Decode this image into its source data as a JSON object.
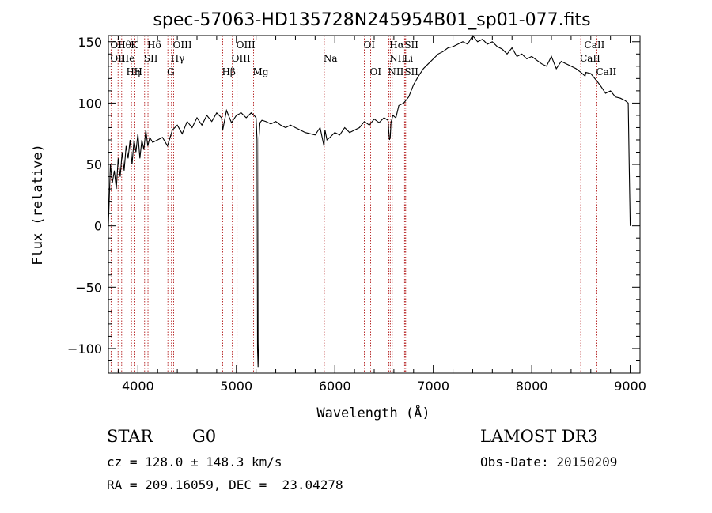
{
  "chart_data": {
    "type": "line",
    "title": "spec-57063-HD135728N245954B01_sp01-077.fits",
    "xlabel": "Wavelength (Å)",
    "ylabel": "Flux (relative)",
    "xlim": [
      3700,
      9100
    ],
    "ylim": [
      -120,
      155
    ],
    "xticks": [
      4000,
      5000,
      6000,
      7000,
      8000,
      9000
    ],
    "yticks": [
      -100,
      -50,
      0,
      50,
      100,
      150
    ],
    "ytick_labels": [
      "−100",
      "−50",
      "0",
      "50",
      "100",
      "150"
    ],
    "x_minor_step": 200,
    "y_minor_step": 10,
    "line_color": "#000000",
    "marker_color": "#aa0000",
    "series": [
      {
        "name": "flux",
        "x": [
          3700,
          3720,
          3740,
          3760,
          3780,
          3800,
          3820,
          3840,
          3860,
          3880,
          3900,
          3920,
          3940,
          3960,
          3980,
          4000,
          4020,
          4040,
          4060,
          4080,
          4100,
          4120,
          4150,
          4200,
          4250,
          4300,
          4350,
          4400,
          4450,
          4500,
          4550,
          4600,
          4650,
          4700,
          4750,
          4800,
          4850,
          4861,
          4900,
          4950,
          5000,
          5050,
          5100,
          5150,
          5180,
          5200,
          5210,
          5215,
          5220,
          5225,
          5230,
          5240,
          5260,
          5300,
          5350,
          5400,
          5450,
          5500,
          5550,
          5600,
          5650,
          5700,
          5750,
          5800,
          5850,
          5890,
          5900,
          5920,
          5950,
          6000,
          6050,
          6100,
          6150,
          6200,
          6250,
          6300,
          6350,
          6400,
          6450,
          6500,
          6540,
          6555,
          6563,
          6570,
          6590,
          6620,
          6650,
          6700,
          6750,
          6800,
          6850,
          6900,
          6950,
          7000,
          7050,
          7100,
          7150,
          7200,
          7250,
          7300,
          7350,
          7400,
          7450,
          7500,
          7550,
          7600,
          7650,
          7700,
          7750,
          7800,
          7850,
          7900,
          7950,
          8000,
          8050,
          8100,
          8150,
          8200,
          8250,
          8300,
          8350,
          8400,
          8450,
          8500,
          8542,
          8550,
          8600,
          8662,
          8700,
          8750,
          8800,
          8850,
          8900,
          8950,
          8980,
          8990,
          9000
        ],
        "y": [
          0,
          50,
          35,
          45,
          30,
          55,
          40,
          60,
          45,
          65,
          55,
          70,
          50,
          70,
          60,
          75,
          55,
          70,
          62,
          78,
          65,
          72,
          68,
          70,
          72,
          65,
          78,
          82,
          75,
          85,
          80,
          88,
          82,
          90,
          85,
          92,
          88,
          78,
          94,
          84,
          90,
          92,
          88,
          92,
          90,
          88,
          70,
          -100,
          -115,
          -95,
          72,
          84,
          86,
          85,
          83,
          85,
          82,
          80,
          82,
          80,
          78,
          76,
          75,
          74,
          80,
          65,
          78,
          70,
          72,
          76,
          74,
          80,
          76,
          78,
          80,
          85,
          82,
          87,
          84,
          88,
          86,
          70,
          72,
          84,
          90,
          88,
          98,
          100,
          105,
          115,
          122,
          128,
          132,
          136,
          140,
          142,
          145,
          146,
          148,
          150,
          148,
          155,
          150,
          152,
          148,
          150,
          146,
          144,
          140,
          145,
          138,
          140,
          136,
          138,
          135,
          132,
          130,
          138,
          128,
          134,
          132,
          130,
          128,
          125,
          122,
          125,
          124,
          118,
          114,
          108,
          110,
          105,
          104,
          102,
          100,
          50,
          0
        ]
      }
    ],
    "lines": [
      {
        "wl": 3727,
        "rows": [
          "OII",
          "OII"
        ]
      },
      {
        "wl": 3798,
        "rows": [
          "Hθ",
          "",
          ""
        ]
      },
      {
        "wl": 3835,
        "rows": [
          "",
          "He",
          ""
        ]
      },
      {
        "wl": 3889,
        "rows": [
          "",
          "",
          "Hη"
        ]
      },
      {
        "wl": 3934,
        "rows": [
          "K",
          "",
          ""
        ]
      },
      {
        "wl": 3969,
        "rows": [
          "",
          "",
          "H"
        ]
      },
      {
        "wl": 4068,
        "rows": [
          "",
          "SII"
        ]
      },
      {
        "wl": 4102,
        "rows": [
          "Hδ"
        ]
      },
      {
        "wl": 4304,
        "rows": [
          "",
          "",
          "G"
        ]
      },
      {
        "wl": 4341,
        "rows": [
          "",
          "Hγ"
        ]
      },
      {
        "wl": 4363,
        "rows": [
          "OIII"
        ]
      },
      {
        "wl": 4861,
        "rows": [
          "",
          "",
          "Hβ"
        ]
      },
      {
        "wl": 4959,
        "rows": [
          "",
          "OIII"
        ]
      },
      {
        "wl": 5007,
        "rows": [
          "OIII"
        ]
      },
      {
        "wl": 5175,
        "rows": [
          "",
          "",
          "Mg"
        ]
      },
      {
        "wl": 5893,
        "rows": [
          "",
          "Na"
        ]
      },
      {
        "wl": 6300,
        "rows": [
          "OI"
        ]
      },
      {
        "wl": 6364,
        "rows": [
          "",
          "",
          "OI"
        ]
      },
      {
        "wl": 6548,
        "rows": [
          "",
          "",
          "NII"
        ]
      },
      {
        "wl": 6563,
        "rows": [
          "Hα",
          "NII"
        ]
      },
      {
        "wl": 6583,
        "rows": [
          "",
          "",
          ""
        ]
      },
      {
        "wl": 6708,
        "rows": [
          "",
          "Li"
        ]
      },
      {
        "wl": 6716,
        "rows": [
          "SII",
          "",
          "SII"
        ]
      },
      {
        "wl": 6731,
        "rows": [
          "",
          "",
          ""
        ]
      },
      {
        "wl": 8498,
        "rows": [
          "",
          "CaII"
        ]
      },
      {
        "wl": 8542,
        "rows": [
          "CaII"
        ]
      },
      {
        "wl": 8662,
        "rows": [
          "",
          "",
          "CaII"
        ]
      }
    ]
  },
  "info": {
    "object_type": "STAR",
    "subclass": "G0",
    "survey": "LAMOST DR3",
    "cz": "cz = 128.0 ± 148.3 km/s",
    "obs_date": "Obs-Date: 20150209",
    "coords": "RA = 209.16059, DEC =  23.04278"
  }
}
